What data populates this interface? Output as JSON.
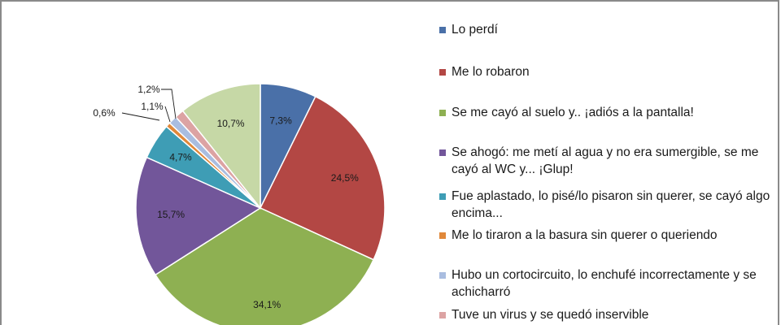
{
  "chart_data": {
    "type": "pie",
    "slices": [
      {
        "label": "Lo perdí",
        "value": 7.3,
        "value_label": "7,3%",
        "color": "#4a70a8"
      },
      {
        "label": "Me lo robaron",
        "value": 24.5,
        "value_label": "24,5%",
        "color": "#b34744"
      },
      {
        "label": "Se me cayó al suelo y.. ¡adiós a la pantalla!",
        "value": 34.1,
        "value_label": "34,1%",
        "color": "#8eb052"
      },
      {
        "label": "Se ahogó: me metí al agua y no era sumergible, se me cayó al WC y... ¡Glup!",
        "value": 15.7,
        "value_label": "15,7%",
        "color": "#72569a"
      },
      {
        "label": "Fue aplastado, lo pisé/lo pisaron sin querer, se cayó algo encima...",
        "value": 4.7,
        "value_label": "4,7%",
        "color": "#3e9db5"
      },
      {
        "label": "Me lo tiraron a la basura sin querer o queriendo",
        "value": 0.6,
        "value_label": "0,6%",
        "color": "#e0883a"
      },
      {
        "label": "Hubo un cortocircuito, lo enchufé incorrectamente y se achicharró",
        "value": 1.1,
        "value_label": "1,1%",
        "color": "#a9bde0"
      },
      {
        "label": "Tuve un virus y se quedó inservible",
        "value": 1.2,
        "value_label": "1,2%",
        "color": "#dca3a3"
      },
      {
        "label": "",
        "value": 10.7,
        "value_label": "10,7%",
        "color": "#c6d8a6"
      }
    ],
    "legend_position": "right"
  }
}
